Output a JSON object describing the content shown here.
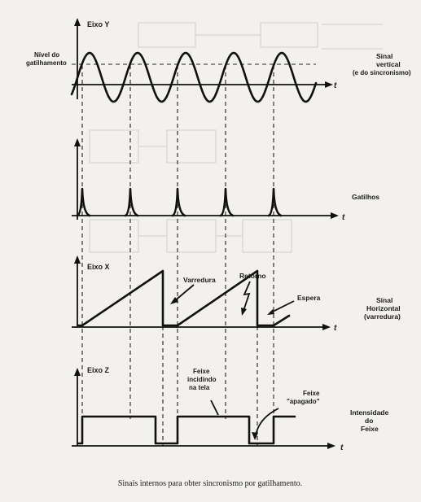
{
  "panels": {
    "y": {
      "axis_label": "Eixo Y",
      "left_label_lines": [
        "Nível do",
        "gatilhamento"
      ],
      "right_label_lines": [
        "Sinal",
        "vertical",
        "(e do sincronismo)"
      ],
      "t_label": "t"
    },
    "trigger": {
      "right_label": "Gatilhos",
      "t_label": "t"
    },
    "x": {
      "axis_label": "Eixo X",
      "sweep_label": "Varredura",
      "return_label": "Retorno",
      "wait_label": "Espera",
      "right_label_lines": [
        "Sinal",
        "Horizontal",
        "(varredura)"
      ],
      "t_label": "t"
    },
    "z": {
      "axis_label": "Eixo Z",
      "beam_label_lines": [
        "Feixe",
        "incidindo",
        "na tela"
      ],
      "off_label_lines": [
        "Feixe",
        "\"apagado\""
      ],
      "right_label_lines": [
        "Intensidade",
        "do",
        "Feixe"
      ],
      "t_label": "t"
    }
  },
  "caption": "Sinais internos para obter sincronismo por gatilhamento."
}
